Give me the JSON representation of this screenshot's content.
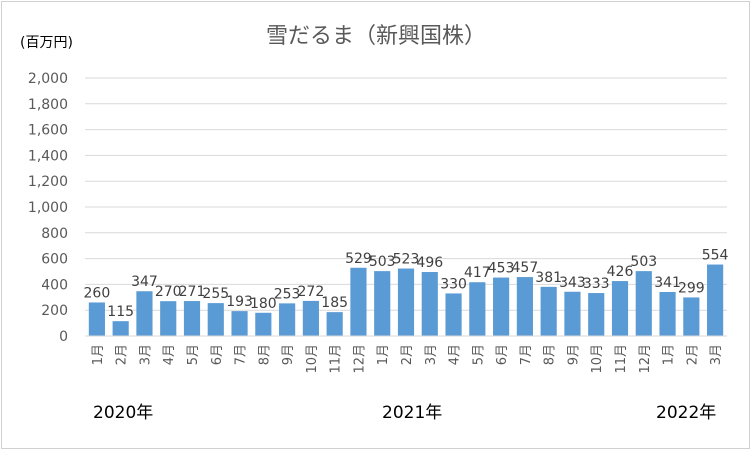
{
  "chart_data": {
    "type": "bar",
    "title": "雪だるま（新興国株）",
    "ylabel": "(百万円)",
    "xlabel": "",
    "ylim": [
      0,
      2000
    ],
    "yticks": [
      "0",
      "200",
      "400",
      "600",
      "800",
      "1,000",
      "1,200",
      "1,400",
      "1,600",
      "1,800",
      "2,000"
    ],
    "categories": [
      "1月",
      "2月",
      "3月",
      "4月",
      "5月",
      "6月",
      "7月",
      "8月",
      "9月",
      "10月",
      "11月",
      "12月",
      "1月",
      "2月",
      "3月",
      "4月",
      "5月",
      "6月",
      "7月",
      "8月",
      "9月",
      "10月",
      "11月",
      "12月",
      "1月",
      "2月",
      "3月"
    ],
    "values": [
      260,
      115,
      347,
      270,
      271,
      255,
      193,
      180,
      253,
      272,
      185,
      529,
      503,
      523,
      496,
      330,
      417,
      453,
      457,
      381,
      343,
      333,
      426,
      503,
      341,
      299,
      554
    ],
    "year_labels": [
      "2020年",
      "2021年",
      "2022年"
    ],
    "grid": true,
    "legend": "none",
    "bar_color": "#5b9bd5",
    "grid_color": "#d9d9d9"
  }
}
